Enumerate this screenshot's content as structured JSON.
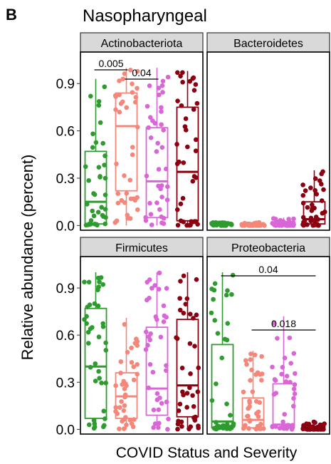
{
  "panel_letter": "B",
  "title": "Nasopharyngeal",
  "ylabel": "Relative abundance (percent)",
  "xlabel": "COVID Status and Severity",
  "colors": {
    "group1": "#2e9b2e",
    "group2": "#f4877a",
    "group3": "#d966d6",
    "group4": "#8b0010"
  },
  "chart_data": {
    "type": "box",
    "title": "Nasopharyngeal",
    "xlabel": "COVID Status and Severity",
    "ylabel": "Relative abundance (percent)",
    "ylim": [
      -0.03,
      1.1
    ],
    "yticks": [
      0.0,
      0.3,
      0.6,
      0.9
    ],
    "ytick_labels": [
      "0.0",
      "0.3",
      "0.6",
      "0.9"
    ],
    "facets": [
      {
        "name": "Actinobacteriota",
        "boxes": [
          {
            "q1": 0.01,
            "median": 0.15,
            "q3": 0.47,
            "lower": 0.0,
            "upper": 0.93
          },
          {
            "q1": 0.22,
            "median": 0.63,
            "q3": 0.84,
            "lower": 0.0,
            "upper": 1.0
          },
          {
            "q1": 0.05,
            "median": 0.28,
            "q3": 0.62,
            "lower": 0.0,
            "upper": 1.0
          },
          {
            "q1": 0.03,
            "median": 0.34,
            "q3": 0.75,
            "lower": 0.0,
            "upper": 0.98
          }
        ],
        "significance": [
          {
            "from": 1,
            "to": 2,
            "label": "0.005"
          },
          {
            "from": 2,
            "to": 3,
            "label": "0.04"
          }
        ]
      },
      {
        "name": "Bacteroidetes",
        "boxes": [
          {
            "q1": 0.0,
            "median": 0.005,
            "q3": 0.01,
            "lower": 0.0,
            "upper": 0.02
          },
          {
            "q1": 0.0,
            "median": 0.003,
            "q3": 0.008,
            "lower": 0.0,
            "upper": 0.02
          },
          {
            "q1": 0.0,
            "median": 0.005,
            "q3": 0.02,
            "lower": 0.0,
            "upper": 0.05
          },
          {
            "q1": 0.01,
            "median": 0.04,
            "q3": 0.15,
            "lower": 0.0,
            "upper": 0.35
          }
        ],
        "significance": []
      },
      {
        "name": "Firmicutes",
        "boxes": [
          {
            "q1": 0.07,
            "median": 0.4,
            "q3": 0.77,
            "lower": 0.0,
            "upper": 1.0
          },
          {
            "q1": 0.07,
            "median": 0.21,
            "q3": 0.36,
            "lower": 0.0,
            "upper": 0.71
          },
          {
            "q1": 0.09,
            "median": 0.26,
            "q3": 0.65,
            "lower": 0.0,
            "upper": 1.0
          },
          {
            "q1": 0.08,
            "median": 0.28,
            "q3": 0.7,
            "lower": 0.0,
            "upper": 1.0
          }
        ],
        "significance": []
      },
      {
        "name": "Proteobacteria",
        "boxes": [
          {
            "q1": 0.01,
            "median": 0.05,
            "q3": 0.54,
            "lower": 0.0,
            "upper": 1.0
          },
          {
            "q1": 0.01,
            "median": 0.06,
            "q3": 0.2,
            "lower": 0.0,
            "upper": 0.5
          },
          {
            "q1": 0.01,
            "median": 0.03,
            "q3": 0.29,
            "lower": 0.0,
            "upper": 0.72
          },
          {
            "q1": 0.0,
            "median": 0.005,
            "q3": 0.02,
            "lower": 0.0,
            "upper": 0.05
          }
        ],
        "significance": [
          {
            "from": 1,
            "to": 4,
            "label": "0.04"
          },
          {
            "from": 2,
            "to": 4,
            "label": "0.018"
          }
        ]
      }
    ]
  }
}
